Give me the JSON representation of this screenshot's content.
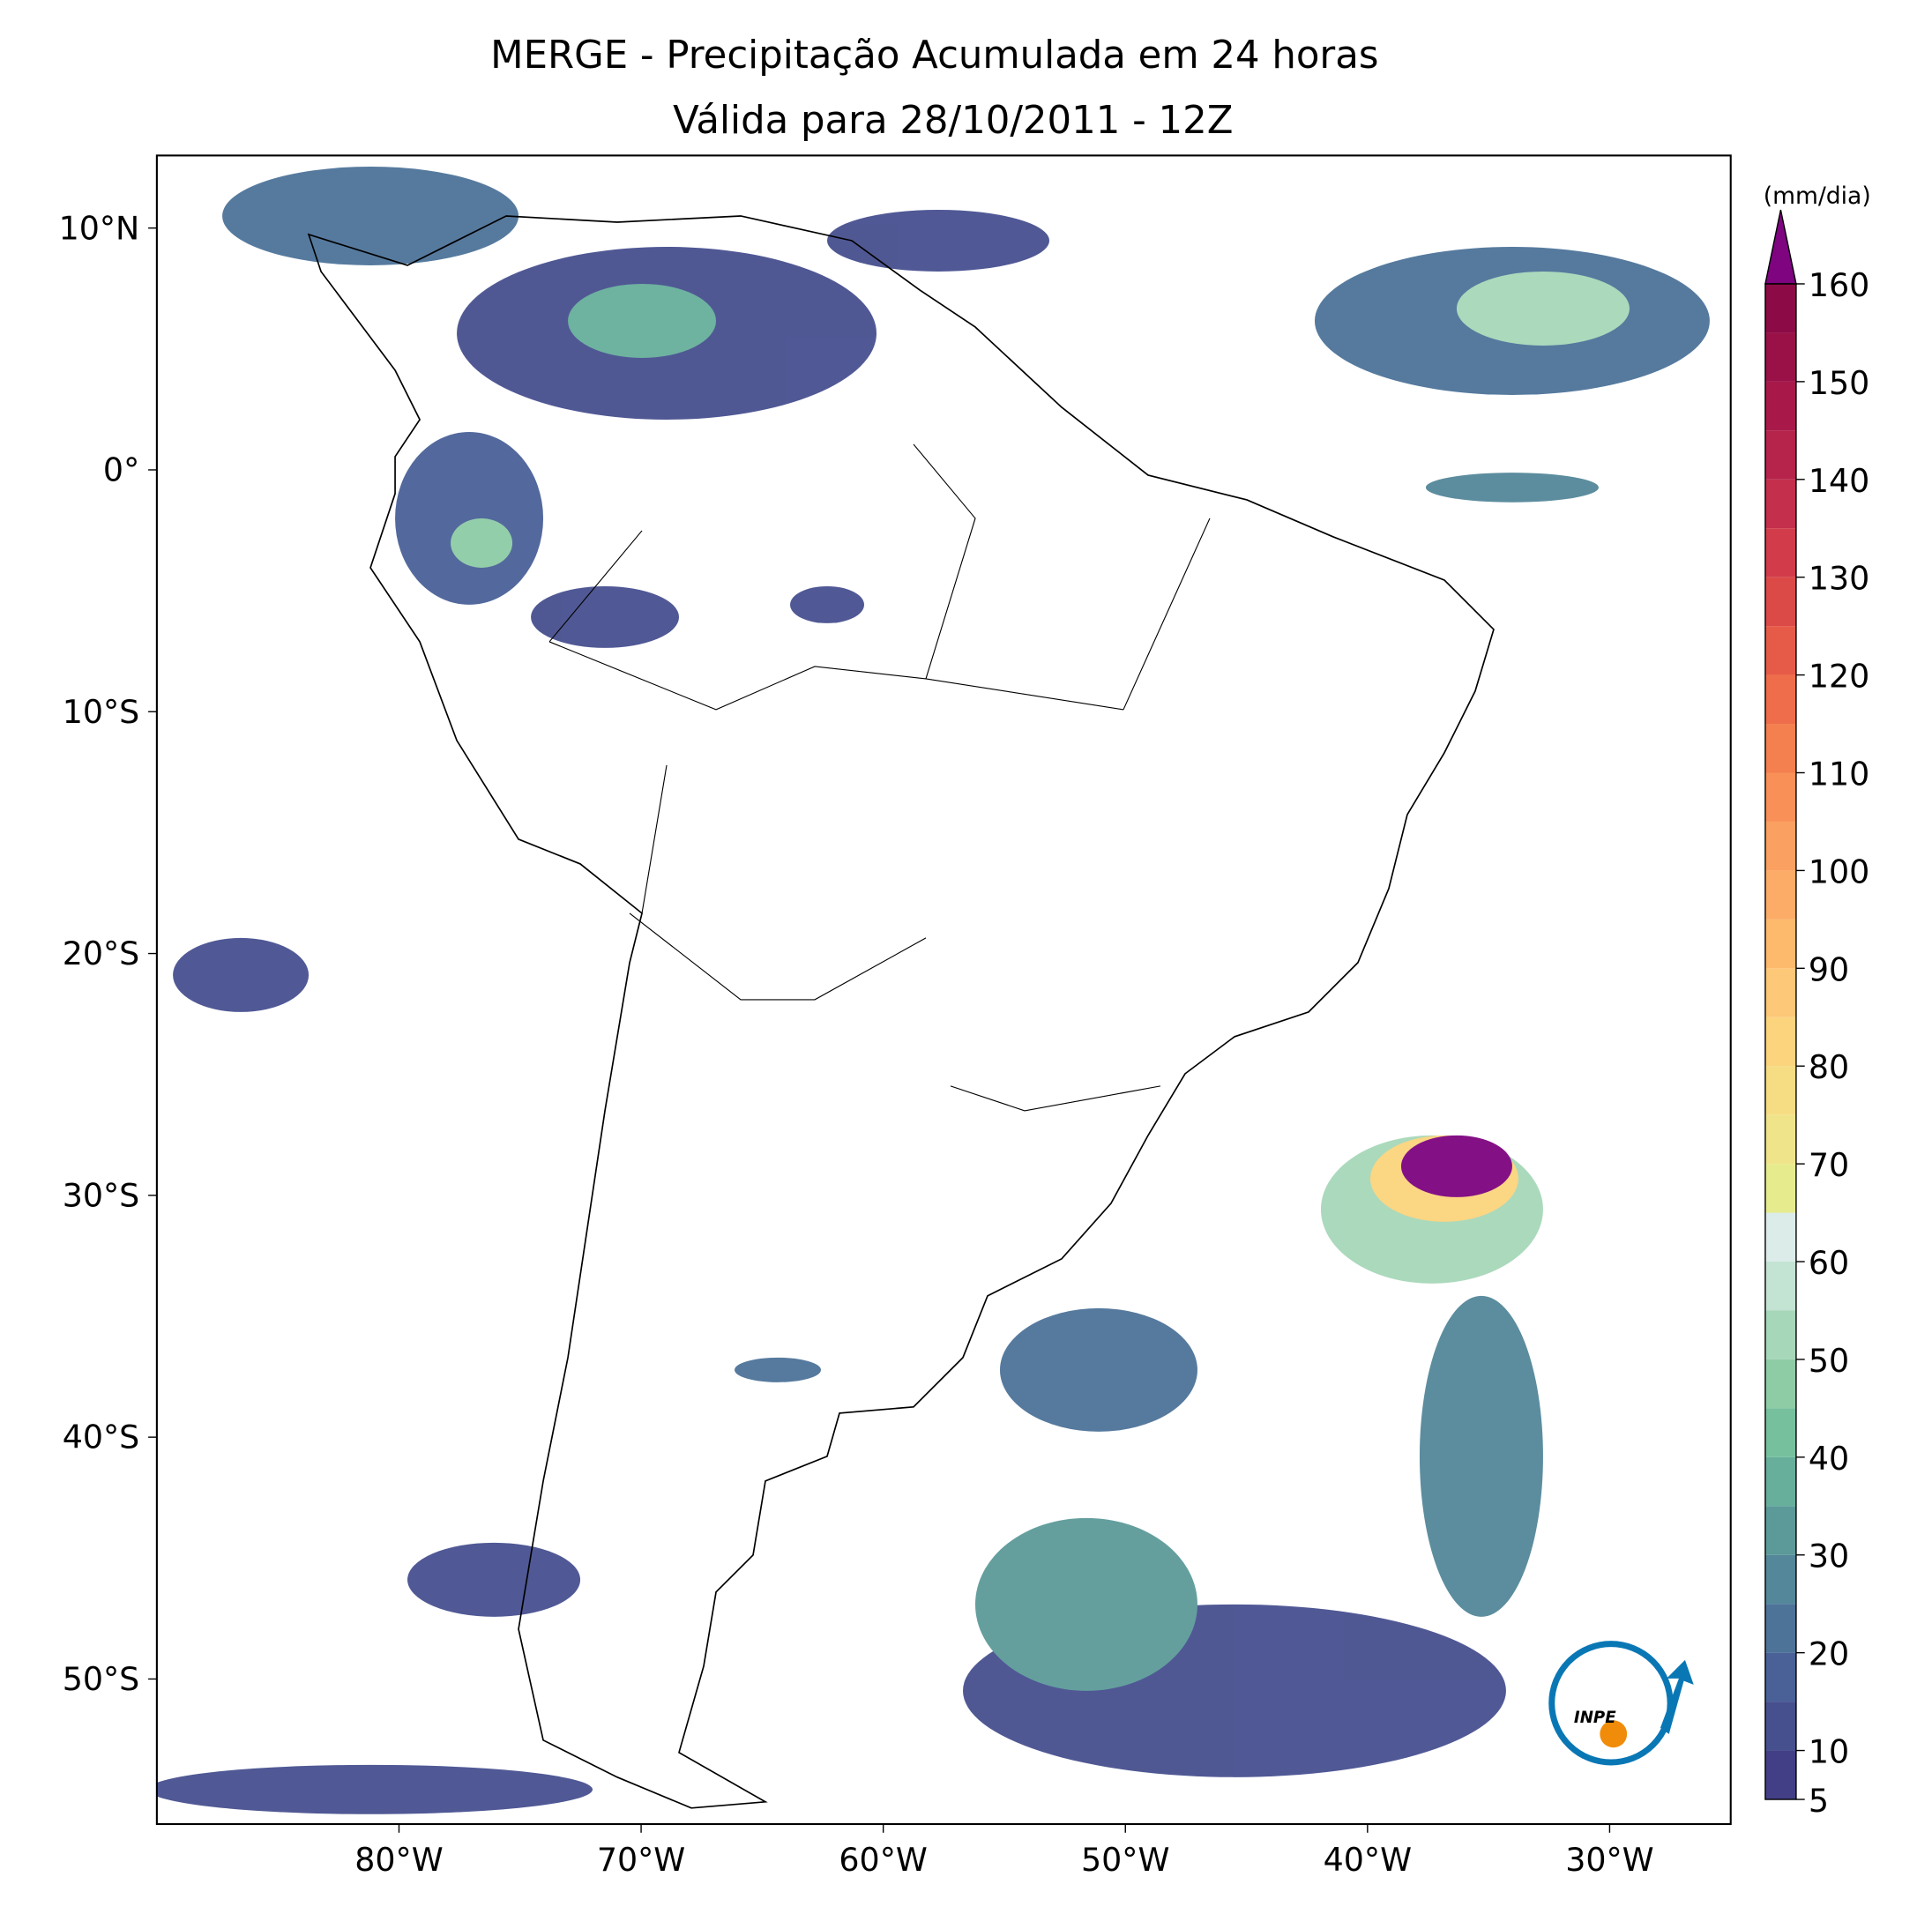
{
  "map": {
    "title": "MERGE - Precipitação Acumulada em 24 horas",
    "subtitle": "Válida para 28/10/2011 - 12Z",
    "xlim": [
      -90,
      -25
    ],
    "ylim": [
      -56,
      13
    ],
    "xticks": [
      {
        "value": -80,
        "label": "80°W"
      },
      {
        "value": -70,
        "label": "70°W"
      },
      {
        "value": -60,
        "label": "60°W"
      },
      {
        "value": -50,
        "label": "50°W"
      },
      {
        "value": -40,
        "label": "40°W"
      },
      {
        "value": -30,
        "label": "30°W"
      }
    ],
    "yticks": [
      {
        "value": 10,
        "label": "10°N"
      },
      {
        "value": 0,
        "label": "0°"
      },
      {
        "value": -10,
        "label": "10°S"
      },
      {
        "value": -20,
        "label": "20°S"
      },
      {
        "value": -30,
        "label": "30°S"
      },
      {
        "value": -40,
        "label": "40°S"
      },
      {
        "value": -50,
        "label": "50°S"
      }
    ],
    "colorbar": {
      "unit": "(mm/dia)",
      "levels": [
        5,
        10,
        15,
        20,
        25,
        30,
        35,
        40,
        45,
        50,
        55,
        60,
        65,
        70,
        75,
        80,
        85,
        90,
        95,
        100,
        105,
        110,
        115,
        120,
        125,
        130,
        135,
        140,
        145,
        150,
        155,
        160
      ],
      "colors": [
        "#433f86",
        "#47508f",
        "#4a6198",
        "#4d7399",
        "#538799",
        "#5c9a99",
        "#67ae9b",
        "#76c09e",
        "#8ecca6",
        "#a7d7b9",
        "#c3e3d3",
        "#dbece9",
        "#e6ec8e",
        "#efe48a",
        "#f6dc83",
        "#fbd47d",
        "#fdc877",
        "#fdba6d",
        "#fcac66",
        "#faa060",
        "#f89057",
        "#f47f4f",
        "#ef6d4a",
        "#e65b47",
        "#dc4a48",
        "#d23c4a",
        "#c42f4b",
        "#b6234b",
        "#a8194a",
        "#9a1147",
        "#8c0a45"
      ],
      "extend_color": "#7e0480",
      "ticks": [
        5,
        10,
        20,
        30,
        40,
        50,
        60,
        70,
        80,
        90,
        100,
        110,
        120,
        130,
        140,
        150,
        160
      ]
    },
    "logo": "INPE"
  }
}
